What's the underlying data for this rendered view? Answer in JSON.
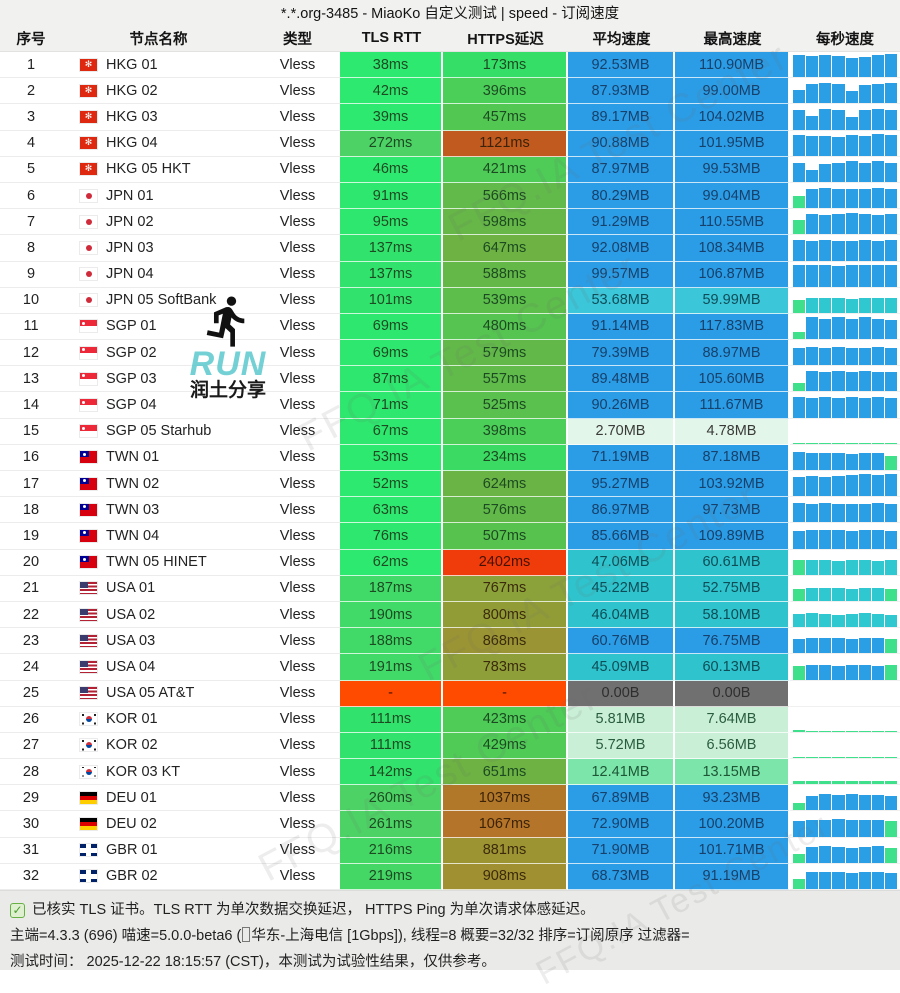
{
  "title": "*.*.org-3485 - MiaoKo 自定义测试 | speed - 订阅速度",
  "colors": {
    "bar_blue": "#2b9fe6",
    "bar_teal": "#2fc7d0",
    "bar_green": "#3fe08b",
    "accent_green": "#3fe08b",
    "red_cell": "#ff4b00",
    "gray_cell": "#707070"
  },
  "watermark": {
    "text": "FFQ.IA Test Center"
  },
  "runlogo": {
    "word": "RUN",
    "sub": "润土分享",
    "icon": "runner-icon"
  },
  "table": {
    "headers": [
      "序号",
      "节点名称",
      "类型",
      "TLS RTT",
      "HTTPS延迟",
      "平均速度",
      "最高速度",
      "每秒速度"
    ],
    "rows": [
      {
        "idx": "1",
        "flag": "hkg",
        "name": "HKG 01",
        "type": "Vless",
        "tls": "38ms",
        "tls_bg": "#2de96f",
        "https": "173ms",
        "https_bg": "#35df67",
        "avg": "92.53MB",
        "max": "110.90MB",
        "spd_bg": "#2b9de6",
        "spd_fg": "#17406b",
        "chart": {
          "c": "b",
          "h": [
            0.93,
            0.88,
            0.9,
            0.86,
            0.8,
            0.84,
            0.9,
            0.94
          ]
        }
      },
      {
        "idx": "2",
        "flag": "hkg",
        "name": "HKG 02",
        "type": "Vless",
        "tls": "42ms",
        "tls_bg": "#2de96f",
        "https": "396ms",
        "https_bg": "#4bcf59",
        "avg": "87.93MB",
        "max": "99.00MB",
        "spd_bg": "#2b9de6",
        "spd_fg": "#17406b",
        "chart": {
          "c": "b",
          "h": [
            0.55,
            0.8,
            0.85,
            0.8,
            0.5,
            0.75,
            0.8,
            0.85
          ]
        }
      },
      {
        "idx": "3",
        "flag": "hkg",
        "name": "HKG 03",
        "type": "Vless",
        "tls": "39ms",
        "tls_bg": "#2de96f",
        "https": "457ms",
        "https_bg": "#52c853",
        "avg": "89.17MB",
        "max": "104.02MB",
        "spd_bg": "#2b9de6",
        "spd_fg": "#17406b",
        "chart": {
          "c": "b",
          "h": [
            0.8,
            0.55,
            0.85,
            0.8,
            0.5,
            0.8,
            0.85,
            0.8
          ]
        }
      },
      {
        "idx": "4",
        "flag": "hkg",
        "name": "HKG 04",
        "type": "Vless",
        "tls": "272ms",
        "tls_bg": "#4dd365",
        "https": "1121ms",
        "https_bg": "#c05a1e",
        "https_fg": "#3b2208",
        "avg": "90.88MB",
        "max": "101.95MB",
        "spd_bg": "#2b9de6",
        "spd_fg": "#17406b",
        "chart": {
          "c": "b",
          "h": [
            0.85,
            0.8,
            0.82,
            0.78,
            0.85,
            0.8,
            0.9,
            0.85
          ]
        }
      },
      {
        "idx": "5",
        "flag": "hkg",
        "name": "HKG 05 HKT",
        "type": "Vless",
        "tls": "46ms",
        "tls_bg": "#2de96f",
        "https": "421ms",
        "https_bg": "#4ecc57",
        "avg": "87.97MB",
        "max": "99.53MB",
        "spd_bg": "#2b9de6",
        "spd_fg": "#17406b",
        "chart": {
          "c": "b",
          "h": [
            0.8,
            0.5,
            0.75,
            0.8,
            0.85,
            0.8,
            0.85,
            0.8
          ]
        }
      },
      {
        "idx": "6",
        "flag": "jpn",
        "name": "JPN 01",
        "type": "Vless",
        "tls": "91ms",
        "tls_bg": "#2ee76e",
        "https": "566ms",
        "https_bg": "#61ba4a",
        "avg": "80.29MB",
        "max": "99.04MB",
        "spd_bg": "#2b9de6",
        "spd_fg": "#17406b",
        "chart": {
          "c": "b",
          "h": [
            0.5,
            0.8,
            0.85,
            0.8,
            0.78,
            0.8,
            0.85,
            0.8
          ],
          "a0": true
        }
      },
      {
        "idx": "7",
        "flag": "jpn",
        "name": "JPN 02",
        "type": "Vless",
        "tls": "95ms",
        "tls_bg": "#2ee76e",
        "https": "598ms",
        "https_bg": "#66b747",
        "avg": "91.29MB",
        "max": "110.55MB",
        "spd_bg": "#2b9de6",
        "spd_fg": "#17406b",
        "chart": {
          "c": "b",
          "h": [
            0.6,
            0.85,
            0.8,
            0.85,
            0.9,
            0.85,
            0.8,
            0.85
          ],
          "a0": true
        }
      },
      {
        "idx": "8",
        "flag": "jpn",
        "name": "JPN 03",
        "type": "Vless",
        "tls": "137ms",
        "tls_bg": "#31e36c",
        "https": "647ms",
        "https_bg": "#6db243",
        "avg": "92.08MB",
        "max": "108.34MB",
        "spd_bg": "#2b9de6",
        "spd_fg": "#17406b",
        "chart": {
          "c": "b",
          "h": [
            0.85,
            0.8,
            0.85,
            0.82,
            0.8,
            0.85,
            0.82,
            0.85
          ]
        }
      },
      {
        "idx": "9",
        "flag": "jpn",
        "name": "JPN 04",
        "type": "Vless",
        "tls": "137ms",
        "tls_bg": "#31e36c",
        "https": "588ms",
        "https_bg": "#64b848",
        "avg": "99.57MB",
        "max": "106.87MB",
        "spd_bg": "#2b9de6",
        "spd_fg": "#17406b",
        "chart": {
          "c": "b",
          "h": [
            0.9,
            0.88,
            0.9,
            0.86,
            0.88,
            0.9,
            0.88,
            0.9
          ]
        }
      },
      {
        "idx": "10",
        "flag": "jpn",
        "name": "JPN 05 SoftBank",
        "type": "Vless",
        "tls": "101ms",
        "tls_bg": "#31e36c",
        "https": "539ms",
        "https_bg": "#5dbe4c",
        "avg": "53.68MB",
        "max": "59.99MB",
        "spd_bg": "#3cc6da",
        "spd_fg": "#0e4d57",
        "chart": {
          "c": "t",
          "h": [
            0.55,
            0.6,
            0.62,
            0.6,
            0.58,
            0.6,
            0.62,
            0.6
          ],
          "a0": true
        }
      },
      {
        "idx": "11",
        "flag": "sgp",
        "name": "SGP 01",
        "type": "Vless",
        "tls": "69ms",
        "tls_bg": "#2ee76e",
        "https": "480ms",
        "https_bg": "#55c450",
        "avg": "91.14MB",
        "max": "117.83MB",
        "spd_bg": "#2b9de6",
        "spd_fg": "#17406b",
        "chart": {
          "c": "b",
          "h": [
            0.3,
            0.9,
            0.85,
            0.9,
            0.85,
            0.9,
            0.85,
            0.8
          ],
          "a0": true
        }
      },
      {
        "idx": "12",
        "flag": "sgp",
        "name": "SGP 02",
        "type": "Vless",
        "tls": "69ms",
        "tls_bg": "#2ee76e",
        "https": "579ms",
        "https_bg": "#62b949",
        "avg": "79.39MB",
        "max": "88.97MB",
        "spd_bg": "#2b9de6",
        "spd_fg": "#17406b",
        "chart": {
          "c": "b",
          "h": [
            0.7,
            0.75,
            0.72,
            0.75,
            0.7,
            0.72,
            0.75,
            0.7
          ]
        }
      },
      {
        "idx": "13",
        "flag": "sgp",
        "name": "SGP 03",
        "type": "Vless",
        "tls": "87ms",
        "tls_bg": "#2ee76e",
        "https": "557ms",
        "https_bg": "#60bb4b",
        "avg": "89.48MB",
        "max": "105.60MB",
        "spd_bg": "#2b9de6",
        "spd_fg": "#17406b",
        "chart": {
          "c": "b",
          "h": [
            0.35,
            0.85,
            0.82,
            0.85,
            0.8,
            0.85,
            0.82,
            0.8
          ],
          "a0": true
        }
      },
      {
        "idx": "14",
        "flag": "sgp",
        "name": "SGP 04",
        "type": "Vless",
        "tls": "71ms",
        "tls_bg": "#2ee76e",
        "https": "525ms",
        "https_bg": "#5ac04e",
        "avg": "90.26MB",
        "max": "111.67MB",
        "spd_bg": "#2b9de6",
        "spd_fg": "#17406b",
        "chart": {
          "c": "b",
          "h": [
            0.85,
            0.82,
            0.85,
            0.8,
            0.85,
            0.82,
            0.85,
            0.82
          ]
        }
      },
      {
        "idx": "15",
        "flag": "sgp",
        "name": "SGP 05 Starhub",
        "type": "Vless",
        "tls": "67ms",
        "tls_bg": "#2ee76e",
        "https": "398ms",
        "https_bg": "#4bcf59",
        "avg": "2.70MB",
        "max": "4.78MB",
        "spd_bg": "#e2f6e9",
        "spd_fg": "#3a3a3a",
        "chart": {
          "c": "g",
          "h": [
            0.05,
            0.04,
            0.04,
            0.03,
            0.04,
            0.04,
            0.03,
            0.04
          ]
        }
      },
      {
        "idx": "16",
        "flag": "twn",
        "name": "TWN 01",
        "type": "Vless",
        "tls": "53ms",
        "tls_bg": "#2de96f",
        "https": "234ms",
        "https_bg": "#3bda62",
        "avg": "71.19MB",
        "max": "87.18MB",
        "spd_bg": "#2b9de6",
        "spd_fg": "#17406b",
        "chart": {
          "c": "b",
          "h": [
            0.75,
            0.7,
            0.72,
            0.7,
            0.68,
            0.7,
            0.72,
            0.6
          ],
          "aL": true
        }
      },
      {
        "idx": "17",
        "flag": "twn",
        "name": "TWN 02",
        "type": "Vless",
        "tls": "52ms",
        "tls_bg": "#2de96f",
        "https": "624ms",
        "https_bg": "#6ab445",
        "avg": "95.27MB",
        "max": "103.92MB",
        "spd_bg": "#2b9de6",
        "spd_fg": "#17406b",
        "chart": {
          "c": "b",
          "h": [
            0.78,
            0.82,
            0.8,
            0.85,
            0.88,
            0.9,
            0.88,
            0.9
          ]
        }
      },
      {
        "idx": "18",
        "flag": "twn",
        "name": "TWN 03",
        "type": "Vless",
        "tls": "63ms",
        "tls_bg": "#2de96f",
        "https": "576ms",
        "https_bg": "#62b949",
        "avg": "86.97MB",
        "max": "97.73MB",
        "spd_bg": "#2b9de6",
        "spd_fg": "#17406b",
        "chart": {
          "c": "b",
          "h": [
            0.8,
            0.78,
            0.8,
            0.78,
            0.76,
            0.78,
            0.8,
            0.78
          ]
        }
      },
      {
        "idx": "19",
        "flag": "twn",
        "name": "TWN 04",
        "type": "Vless",
        "tls": "76ms",
        "tls_bg": "#2ee76e",
        "https": "507ms",
        "https_bg": "#58c24f",
        "avg": "85.66MB",
        "max": "109.89MB",
        "spd_bg": "#2b9de6",
        "spd_fg": "#17406b",
        "chart": {
          "c": "b",
          "h": [
            0.72,
            0.78,
            0.75,
            0.78,
            0.72,
            0.75,
            0.78,
            0.72
          ]
        }
      },
      {
        "idx": "20",
        "flag": "twn",
        "name": "TWN 05 HINET",
        "type": "Vless",
        "tls": "62ms",
        "tls_bg": "#2de96f",
        "https": "2402ms",
        "https_bg": "#f03c0a",
        "https_fg": "#451104",
        "avg": "47.06MB",
        "max": "60.61MB",
        "spd_bg": "#2fc4cd",
        "spd_fg": "#0e4d57",
        "chart": {
          "c": "t",
          "h": [
            0.6,
            0.62,
            0.6,
            0.58,
            0.62,
            0.6,
            0.58,
            0.6
          ],
          "a0": true
        }
      },
      {
        "idx": "21",
        "flag": "usa",
        "name": "USA 01",
        "type": "Vless",
        "tls": "187ms",
        "tls_bg": "#41da68",
        "https": "767ms",
        "https_bg": "#8ba13a",
        "https_fg": "#3b2a0c",
        "avg": "45.22MB",
        "max": "52.75MB",
        "spd_bg": "#2fc4cd",
        "spd_fg": "#0e4d57",
        "chart": {
          "c": "t",
          "h": [
            0.5,
            0.55,
            0.52,
            0.55,
            0.5,
            0.55,
            0.52,
            0.5
          ],
          "a0": true,
          "aL": true
        }
      },
      {
        "idx": "22",
        "flag": "usa",
        "name": "USA 02",
        "type": "Vless",
        "tls": "190ms",
        "tls_bg": "#41da68",
        "https": "800ms",
        "https_bg": "#919c37",
        "https_fg": "#3b2a0c",
        "avg": "46.04MB",
        "max": "58.10MB",
        "spd_bg": "#2fc4cd",
        "spd_fg": "#0e4d57",
        "chart": {
          "c": "t",
          "h": [
            0.55,
            0.58,
            0.55,
            0.52,
            0.55,
            0.58,
            0.55,
            0.52
          ]
        }
      },
      {
        "idx": "23",
        "flag": "usa",
        "name": "USA 03",
        "type": "Vless",
        "tls": "188ms",
        "tls_bg": "#41da68",
        "https": "868ms",
        "https_bg": "#9b9434",
        "https_fg": "#3b2a0c",
        "avg": "60.76MB",
        "max": "76.75MB",
        "spd_bg": "#2b9de6",
        "spd_fg": "#17406b",
        "chart": {
          "c": "b",
          "h": [
            0.6,
            0.65,
            0.62,
            0.65,
            0.6,
            0.62,
            0.65,
            0.6
          ],
          "aL": true
        }
      },
      {
        "idx": "24",
        "flag": "usa",
        "name": "USA 04",
        "type": "Vless",
        "tls": "191ms",
        "tls_bg": "#41da68",
        "https": "783ms",
        "https_bg": "#8e9f39",
        "https_fg": "#3b2a0c",
        "avg": "45.09MB",
        "max": "60.13MB",
        "spd_bg": "#2fc4cd",
        "spd_fg": "#0e4d57",
        "chart": {
          "c": "b",
          "h": [
            0.55,
            0.6,
            0.58,
            0.55,
            0.6,
            0.58,
            0.55,
            0.58
          ],
          "a0": true,
          "aL": true
        }
      },
      {
        "idx": "25",
        "flag": "usa",
        "name": "USA 05 AT&T",
        "type": "Vless",
        "tls": "-",
        "tls_bg": "#ff4b00",
        "tls_fg": "#451104",
        "https": "-",
        "https_bg": "#ff4b00",
        "https_fg": "#451104",
        "avg": "0.00B",
        "max": "0.00B",
        "spd_bg": "#707070",
        "spd_fg": "#2e2e2e",
        "chart": {
          "c": "b",
          "h": [
            0,
            0,
            0,
            0,
            0,
            0,
            0,
            0
          ]
        }
      },
      {
        "idx": "26",
        "flag": "kor",
        "name": "KOR 01",
        "type": "Vless",
        "tls": "111ms",
        "tls_bg": "#31e36c",
        "https": "423ms",
        "https_bg": "#4ecc57",
        "avg": "5.81MB",
        "max": "7.64MB",
        "spd_bg": "#c9f0d7",
        "spd_fg": "#2a5c40",
        "chart": {
          "c": "g",
          "h": [
            0.06,
            0.05,
            0.05,
            0.04,
            0.05,
            0.05,
            0.04,
            0.05
          ]
        }
      },
      {
        "idx": "27",
        "flag": "kor",
        "name": "KOR 02",
        "type": "Vless",
        "tls": "111ms",
        "tls_bg": "#31e36c",
        "https": "429ms",
        "https_bg": "#4fcb56",
        "avg": "5.72MB",
        "max": "6.56MB",
        "spd_bg": "#c9f0d7",
        "spd_fg": "#2a5c40",
        "chart": {
          "c": "g",
          "h": [
            0.05,
            0.04,
            0.05,
            0.04,
            0.04,
            0.05,
            0.04,
            0.04
          ]
        }
      },
      {
        "idx": "28",
        "flag": "kor",
        "name": "KOR 03 KT",
        "type": "Vless",
        "tls": "142ms",
        "tls_bg": "#31e36c",
        "https": "651ms",
        "https_bg": "#6db243",
        "avg": "12.41MB",
        "max": "13.15MB",
        "spd_bg": "#7ce6aa",
        "spd_fg": "#1e5636",
        "chart": {
          "c": "g",
          "h": [
            0.14,
            0.13,
            0.13,
            0.12,
            0.13,
            0.14,
            0.13,
            0.12
          ]
        }
      },
      {
        "idx": "29",
        "flag": "deu",
        "name": "DEU 01",
        "type": "Vless",
        "tls": "260ms",
        "tls_bg": "#4dd365",
        "https": "1037ms",
        "https_bg": "#b1782a",
        "https_fg": "#3b2208",
        "avg": "67.89MB",
        "max": "93.23MB",
        "spd_bg": "#2b9de6",
        "spd_fg": "#17406b",
        "chart": {
          "c": "b",
          "h": [
            0.3,
            0.6,
            0.68,
            0.65,
            0.68,
            0.62,
            0.65,
            0.6
          ],
          "a0": true
        }
      },
      {
        "idx": "30",
        "flag": "deu",
        "name": "DEU 02",
        "type": "Vless",
        "tls": "261ms",
        "tls_bg": "#4dd365",
        "https": "1067ms",
        "https_bg": "#b4752a",
        "https_fg": "#3b2208",
        "avg": "72.90MB",
        "max": "100.20MB",
        "spd_bg": "#2b9de6",
        "spd_fg": "#17406b",
        "chart": {
          "c": "b",
          "h": [
            0.65,
            0.7,
            0.68,
            0.72,
            0.7,
            0.68,
            0.7,
            0.65
          ],
          "aL": true
        }
      },
      {
        "idx": "31",
        "flag": "gbr",
        "name": "GBR 01",
        "type": "Vless",
        "tls": "216ms",
        "tls_bg": "#45d766",
        "https": "881ms",
        "https_bg": "#9c9333",
        "https_fg": "#3b2a0c",
        "avg": "71.90MB",
        "max": "101.71MB",
        "spd_bg": "#2b9de6",
        "spd_fg": "#17406b",
        "chart": {
          "c": "b",
          "h": [
            0.35,
            0.65,
            0.68,
            0.65,
            0.6,
            0.65,
            0.68,
            0.6
          ],
          "a0": true,
          "aL": true
        }
      },
      {
        "idx": "32",
        "flag": "gbr",
        "name": "GBR 02",
        "type": "Vless",
        "tls": "219ms",
        "tls_bg": "#45d766",
        "https": "908ms",
        "https_bg": "#a19032",
        "https_fg": "#3b2a0c",
        "avg": "68.73MB",
        "max": "91.19MB",
        "spd_bg": "#2b9de6",
        "spd_fg": "#17406b",
        "chart": {
          "c": "b",
          "h": [
            0.4,
            0.7,
            0.72,
            0.7,
            0.68,
            0.7,
            0.72,
            0.68
          ],
          "a0": true
        }
      }
    ]
  },
  "footer": {
    "check_glyph": "✓",
    "line1": "已核实 TLS 证书。TLS RTT 为单次数据交换延迟， HTTPS Ping 为单次请求体感延迟。",
    "line2a": "主端=4.3.3 (696) 喵速=5.0.0-beta6 (",
    "line2b": "华东-上海电信 [1Gbps]), 线程=8 概要=32/32 排序=订阅原序 过滤器=",
    "line3": "测试时间： 2025-12-22 18:15:57 (CST)，本测试为试验性结果，仅供参考。"
  }
}
